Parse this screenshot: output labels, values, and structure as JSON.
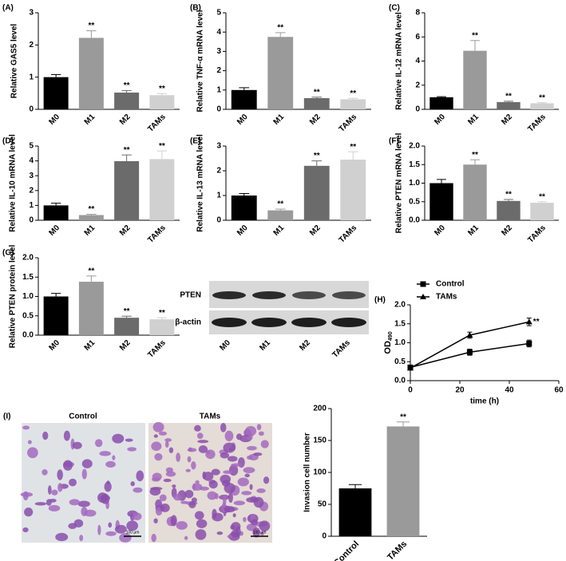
{
  "chart_data": [
    {
      "type": "bar",
      "panel": "(A)",
      "y_label": "Relative GAS5 level",
      "categories": [
        "M0",
        "M1",
        "M2",
        "TAMs"
      ],
      "values": [
        1.0,
        2.22,
        0.52,
        0.44
      ],
      "errors": [
        0.08,
        0.22,
        0.06,
        0.05
      ],
      "annotations": [
        null,
        "**",
        "**",
        "**"
      ],
      "colors": [
        "#000000",
        "#9a9a9a",
        "#6b6b6b",
        "#d0d0d0"
      ],
      "ylim": [
        0,
        3
      ],
      "yticks": [
        0,
        1,
        2,
        3
      ]
    },
    {
      "type": "bar",
      "panel": "(B)",
      "y_label": "Relative TNF-α mRNA level",
      "categories": [
        "M0",
        "M1",
        "M2",
        "TAMs"
      ],
      "values": [
        1.0,
        3.75,
        0.58,
        0.52
      ],
      "errors": [
        0.12,
        0.22,
        0.05,
        0.05
      ],
      "annotations": [
        null,
        "**",
        "**",
        "**"
      ],
      "colors": [
        "#000000",
        "#9a9a9a",
        "#6b6b6b",
        "#d0d0d0"
      ],
      "ylim": [
        0,
        5
      ],
      "yticks": [
        0,
        1,
        2,
        3,
        4,
        5
      ]
    },
    {
      "type": "bar",
      "panel": "(C)",
      "y_label": "Relative IL-12 mRNA level",
      "categories": [
        "M0",
        "M1",
        "M2",
        "TAMs"
      ],
      "values": [
        1.0,
        4.85,
        0.6,
        0.5
      ],
      "errors": [
        0.05,
        0.85,
        0.07,
        0.05
      ],
      "annotations": [
        null,
        "**",
        "**",
        "**"
      ],
      "colors": [
        "#000000",
        "#9a9a9a",
        "#6b6b6b",
        "#d0d0d0"
      ],
      "ylim": [
        0,
        8
      ],
      "yticks": [
        0,
        2,
        4,
        6,
        8
      ]
    },
    {
      "type": "bar",
      "panel": "(D)",
      "y_label": "Relative IL-10 mRNA level",
      "categories": [
        "M0",
        "M1",
        "M2",
        "TAMs"
      ],
      "values": [
        1.0,
        0.35,
        3.98,
        4.12
      ],
      "errors": [
        0.15,
        0.05,
        0.42,
        0.55
      ],
      "annotations": [
        null,
        "**",
        "**",
        "**"
      ],
      "colors": [
        "#000000",
        "#9a9a9a",
        "#6b6b6b",
        "#d0d0d0"
      ],
      "ylim": [
        0,
        5
      ],
      "yticks": [
        0,
        1,
        2,
        3,
        4,
        5
      ]
    },
    {
      "type": "bar",
      "panel": "(E)",
      "y_label": "Relative IL-13 mRNA level",
      "categories": [
        "M0",
        "M1",
        "M2",
        "TAMs"
      ],
      "values": [
        1.0,
        0.4,
        2.2,
        2.45
      ],
      "errors": [
        0.08,
        0.05,
        0.2,
        0.32
      ],
      "annotations": [
        null,
        "**",
        "**",
        "**"
      ],
      "colors": [
        "#000000",
        "#9a9a9a",
        "#6b6b6b",
        "#d0d0d0"
      ],
      "ylim": [
        0,
        3
      ],
      "yticks": [
        0,
        1,
        2,
        3
      ]
    },
    {
      "type": "bar",
      "panel": "(F)",
      "y_label": "Relative PTEN mRNA level",
      "categories": [
        "M0",
        "M1",
        "M2",
        "TAMs"
      ],
      "values": [
        1.0,
        1.5,
        0.52,
        0.47
      ],
      "errors": [
        0.1,
        0.13,
        0.04,
        0.03
      ],
      "annotations": [
        null,
        "**",
        "**",
        "**"
      ],
      "colors": [
        "#000000",
        "#9a9a9a",
        "#6b6b6b",
        "#d0d0d0"
      ],
      "ylim": [
        0,
        2
      ],
      "yticks": [
        {
          "value": 0,
          "label": "0.0"
        },
        {
          "value": 0.5,
          "label": "0.5"
        },
        {
          "value": 1,
          "label": "1.0"
        },
        {
          "value": 1.5,
          "label": "1.5"
        },
        {
          "value": 2,
          "label": "2.0"
        }
      ]
    },
    {
      "type": "bar",
      "panel": "(G)",
      "y_label": "Relative PTEN protein level",
      "categories": [
        "M0",
        "M1",
        "M2",
        "TAMs"
      ],
      "values": [
        1.0,
        1.38,
        0.45,
        0.41
      ],
      "errors": [
        0.08,
        0.15,
        0.04,
        0.04
      ],
      "annotations": [
        null,
        "**",
        "**",
        "**"
      ],
      "colors": [
        "#000000",
        "#9a9a9a",
        "#6b6b6b",
        "#d0d0d0"
      ],
      "ylim": [
        0,
        2
      ],
      "yticks": [
        {
          "value": 0,
          "label": "0.0"
        },
        {
          "value": 0.5,
          "label": "0.5"
        },
        {
          "value": 1,
          "label": "1.0"
        },
        {
          "value": 1.5,
          "label": "1.5"
        },
        {
          "value": 2,
          "label": "2.0"
        }
      ]
    },
    {
      "type": "line",
      "panel": "(H)",
      "y_label": "OD",
      "y_label_sub": "490",
      "x_label": "time (h)",
      "x": [
        0,
        24,
        48
      ],
      "series": [
        {
          "name": "Control",
          "color": "#000000",
          "marker": "square",
          "values": [
            0.35,
            0.75,
            0.98
          ],
          "errors": [
            0.05,
            0.08,
            0.09
          ]
        },
        {
          "name": "TAMs",
          "color": "#000000",
          "marker": "triangle",
          "values": [
            0.33,
            1.2,
            1.55
          ],
          "errors": [
            0.04,
            0.08,
            0.1
          ],
          "annotation": "**"
        }
      ],
      "legend": "upper left",
      "xlim": [
        0,
        60
      ],
      "xticks": [
        0,
        20,
        40,
        60
      ],
      "ylim": [
        0,
        2
      ],
      "yticks": [
        {
          "value": 0,
          "label": "0.0"
        },
        {
          "value": 0.5,
          "label": "0.5"
        },
        {
          "value": 1,
          "label": "1.0"
        },
        {
          "value": 1.5,
          "label": "1.5"
        },
        {
          "value": 2,
          "label": "2.0"
        }
      ]
    },
    {
      "type": "bar",
      "y_label": "Invasion cell number",
      "categories": [
        "Control",
        "TAMs"
      ],
      "values": [
        75,
        172
      ],
      "errors": [
        6,
        7
      ],
      "annotations": [
        null,
        "**"
      ],
      "colors": [
        "#000000",
        "#9a9a9a"
      ],
      "ylim": [
        0,
        200
      ],
      "yticks": [
        0,
        50,
        100,
        150,
        200
      ]
    }
  ],
  "blot": {
    "rows": [
      "PTEN",
      "β-actin"
    ],
    "lanes": [
      "M0",
      "M1",
      "M2",
      "TAMs"
    ]
  },
  "micrographs": {
    "panel": "(I)",
    "labels": [
      "Control",
      "TAMs"
    ],
    "scale_bars": [
      "100 μm",
      "100 μm"
    ]
  }
}
